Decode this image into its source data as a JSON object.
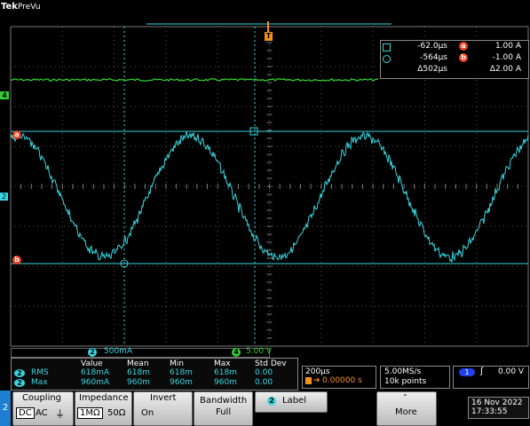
{
  "header": {
    "brand": "Tek",
    "mode": "PreVu"
  },
  "markers": {
    "trigger": "T",
    "ch4": "4",
    "cursor_a": "a",
    "cursor_b": "b",
    "ch2": "2"
  },
  "cursor_readout": {
    "rows": [
      [
        "-62.0µs",
        "a",
        "1.00 A"
      ],
      [
        "-564µs",
        "b",
        "-1.00 A"
      ],
      [
        "Δ502µs",
        "",
        "Δ2.00 A"
      ]
    ]
  },
  "channels": [
    {
      "number": "2",
      "scale": "500mA"
    },
    {
      "number": "4",
      "scale": "5.00 V"
    }
  ],
  "measurements": {
    "headers": [
      "Value",
      "Mean",
      "Min",
      "Max",
      "Std Dev"
    ],
    "rows": [
      {
        "channel": "2",
        "name": "RMS",
        "cells": [
          "618mA",
          "618m",
          "618m",
          "618m",
          "0.00"
        ]
      },
      {
        "channel": "2",
        "name": "Max",
        "cells": [
          "960mA",
          "960m",
          "960m",
          "960m",
          "0.00"
        ]
      }
    ]
  },
  "timebase": {
    "scale": "200µs",
    "position": "0.00000 s",
    "sample_rate": "5.00MS/s",
    "record": "10k points"
  },
  "trigger": {
    "channel": "1",
    "level": "0.00 V"
  },
  "menu": {
    "tab": "2",
    "coupling": {
      "label": "Coupling",
      "options": [
        "DC",
        "AC"
      ]
    },
    "impedance": {
      "label": "Impedance",
      "options": [
        "1MΩ",
        "50Ω"
      ]
    },
    "invert": {
      "label": "Invert",
      "value": "On"
    },
    "bandwidth": {
      "label": "Bandwidth",
      "value": "Full"
    },
    "label": {
      "channel": "2",
      "text": "Label"
    },
    "more": "More"
  },
  "date": "16 Nov 2022",
  "time": "17:33:55"
}
